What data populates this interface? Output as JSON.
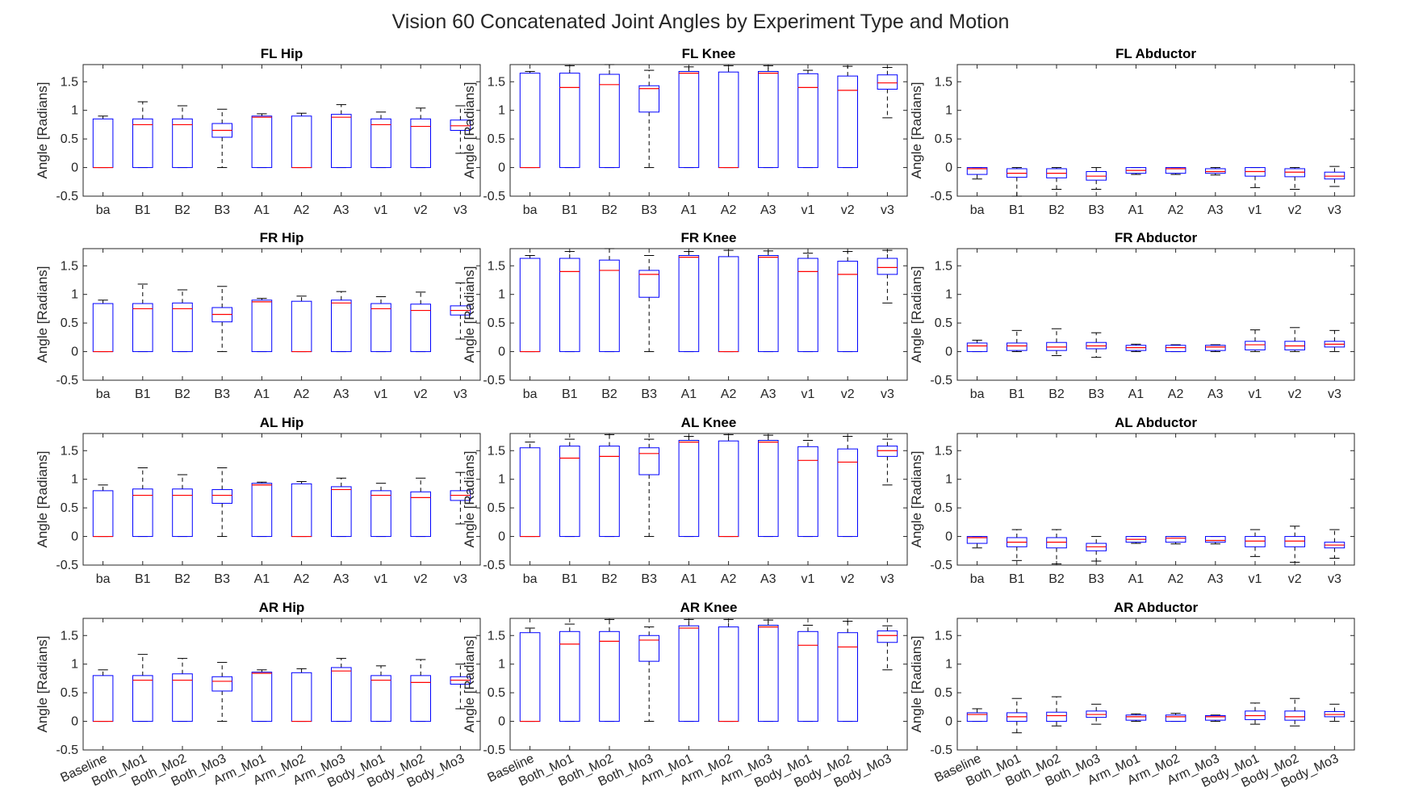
{
  "figure": {
    "title": "Vision 60 Concatenated Joint Angles by Experiment Type and Motion",
    "box_color": "#0000ff",
    "median_color": "#ff0000",
    "whisker_color": "#000000"
  },
  "chart_data": [
    {
      "type": "box",
      "title": "FL Hip",
      "ylabel": "Angle [Radians]",
      "ylim": [
        -0.5,
        1.8
      ],
      "yticks": [
        -0.5,
        0,
        0.5,
        1,
        1.5
      ],
      "categories": [
        "ba",
        "B1",
        "B2",
        "B3",
        "A1",
        "A2",
        "A3",
        "v1",
        "v2",
        "v3"
      ],
      "boxes": [
        [
          0,
          0,
          0,
          0.85,
          0.9
        ],
        [
          0,
          0,
          0.75,
          0.85,
          1.15
        ],
        [
          0,
          0,
          0.75,
          0.85,
          1.08
        ],
        [
          0,
          0.53,
          0.65,
          0.77,
          1.02
        ],
        [
          0,
          0,
          0.88,
          0.9,
          0.94
        ],
        [
          0,
          0,
          0,
          0.9,
          0.95
        ],
        [
          0,
          0,
          0.88,
          0.93,
          1.1
        ],
        [
          0,
          0,
          0.75,
          0.85,
          0.97
        ],
        [
          0,
          0,
          0.72,
          0.85,
          1.04
        ],
        [
          0.25,
          0.65,
          0.73,
          0.83,
          1.08
        ]
      ]
    },
    {
      "type": "box",
      "title": "FL Knee",
      "ylabel": "Angle [Radians]",
      "ylim": [
        -0.5,
        1.8
      ],
      "yticks": [
        -0.5,
        0,
        0.5,
        1,
        1.5
      ],
      "categories": [
        "ba",
        "B1",
        "B2",
        "B3",
        "A1",
        "A2",
        "A3",
        "v1",
        "v2",
        "v3"
      ],
      "boxes": [
        [
          0,
          0,
          0,
          1.65,
          1.68
        ],
        [
          0,
          0,
          1.4,
          1.65,
          1.78
        ],
        [
          0,
          0,
          1.45,
          1.63,
          1.8
        ],
        [
          0,
          0.97,
          1.38,
          1.43,
          1.7
        ],
        [
          0,
          0,
          1.65,
          1.68,
          1.76
        ],
        [
          0,
          0,
          0,
          1.67,
          1.78
        ],
        [
          0,
          0,
          1.65,
          1.68,
          1.78
        ],
        [
          0,
          0,
          1.4,
          1.64,
          1.7
        ],
        [
          0,
          0,
          1.35,
          1.6,
          1.77
        ],
        [
          0.87,
          1.37,
          1.48,
          1.62,
          1.75
        ]
      ]
    },
    {
      "type": "box",
      "title": "FL Abductor",
      "ylabel": "Angle [Radians]",
      "ylim": [
        -0.5,
        1.8
      ],
      "yticks": [
        -0.5,
        0,
        0.5,
        1,
        1.5
      ],
      "categories": [
        "ba",
        "B1",
        "B2",
        "B3",
        "A1",
        "A2",
        "A3",
        "v1",
        "v2",
        "v3"
      ],
      "boxes": [
        [
          -0.2,
          -0.12,
          -0.02,
          0,
          0
        ],
        [
          -0.5,
          -0.17,
          -0.1,
          -0.02,
          0
        ],
        [
          -0.38,
          -0.18,
          -0.1,
          -0.02,
          0
        ],
        [
          -0.38,
          -0.22,
          -0.15,
          -0.07,
          0
        ],
        [
          -0.12,
          -0.1,
          -0.05,
          0,
          0
        ],
        [
          -0.12,
          -0.1,
          -0.02,
          0,
          0
        ],
        [
          -0.13,
          -0.1,
          -0.07,
          -0.02,
          0
        ],
        [
          -0.35,
          -0.15,
          -0.07,
          0,
          0
        ],
        [
          -0.38,
          -0.16,
          -0.08,
          -0.02,
          0
        ],
        [
          -0.33,
          -0.2,
          -0.15,
          -0.08,
          0.02
        ]
      ]
    },
    {
      "type": "box",
      "title": "FR Hip",
      "ylabel": "Angle [Radians]",
      "ylim": [
        -0.5,
        1.8
      ],
      "yticks": [
        -0.5,
        0,
        0.5,
        1,
        1.5
      ],
      "categories": [
        "ba",
        "B1",
        "B2",
        "B3",
        "A1",
        "A2",
        "A3",
        "v1",
        "v2",
        "v3"
      ],
      "boxes": [
        [
          0,
          0,
          0,
          0.84,
          0.9
        ],
        [
          0,
          0,
          0.75,
          0.84,
          1.18
        ],
        [
          0,
          0,
          0.75,
          0.85,
          1.08
        ],
        [
          0,
          0.52,
          0.65,
          0.77,
          1.14
        ],
        [
          0,
          0,
          0.87,
          0.9,
          0.93
        ],
        [
          0,
          0,
          0,
          0.88,
          0.97
        ],
        [
          0,
          0,
          0.85,
          0.9,
          1.05
        ],
        [
          0,
          0,
          0.75,
          0.84,
          0.96
        ],
        [
          0,
          0,
          0.72,
          0.83,
          1.04
        ],
        [
          0.22,
          0.64,
          0.72,
          0.8,
          1.2
        ]
      ]
    },
    {
      "type": "box",
      "title": "FR Knee",
      "ylabel": "Angle [Radians]",
      "ylim": [
        -0.5,
        1.8
      ],
      "yticks": [
        -0.5,
        0,
        0.5,
        1,
        1.5
      ],
      "categories": [
        "ba",
        "B1",
        "B2",
        "B3",
        "A1",
        "A2",
        "A3",
        "v1",
        "v2",
        "v3"
      ],
      "boxes": [
        [
          0,
          0,
          0,
          1.63,
          1.68
        ],
        [
          0,
          0,
          1.4,
          1.63,
          1.75
        ],
        [
          0,
          0,
          1.42,
          1.6,
          1.8
        ],
        [
          0,
          0.95,
          1.35,
          1.42,
          1.68
        ],
        [
          0,
          0,
          1.65,
          1.68,
          1.75
        ],
        [
          0,
          0,
          0,
          1.66,
          1.77
        ],
        [
          0,
          0,
          1.65,
          1.68,
          1.76
        ],
        [
          0,
          0,
          1.4,
          1.63,
          1.72
        ],
        [
          0,
          0,
          1.35,
          1.58,
          1.75
        ],
        [
          0.85,
          1.35,
          1.47,
          1.63,
          1.77
        ]
      ]
    },
    {
      "type": "box",
      "title": "FR Abductor",
      "ylabel": "Angle [Radians]",
      "ylim": [
        -0.5,
        1.8
      ],
      "yticks": [
        -0.5,
        0,
        0.5,
        1,
        1.5
      ],
      "categories": [
        "ba",
        "B1",
        "B2",
        "B3",
        "A1",
        "A2",
        "A3",
        "v1",
        "v2",
        "v3"
      ],
      "boxes": [
        [
          0,
          0,
          0.1,
          0.15,
          0.2
        ],
        [
          0,
          0.02,
          0.1,
          0.15,
          0.37
        ],
        [
          -0.07,
          0.02,
          0.08,
          0.16,
          0.4
        ],
        [
          -0.1,
          0.05,
          0.1,
          0.16,
          0.33
        ],
        [
          0,
          0.02,
          0.07,
          0.11,
          0.13
        ],
        [
          0,
          0,
          0.07,
          0.11,
          0.12
        ],
        [
          0,
          0.02,
          0.08,
          0.11,
          0.12
        ],
        [
          0,
          0.03,
          0.12,
          0.18,
          0.38
        ],
        [
          0,
          0.03,
          0.1,
          0.18,
          0.42
        ],
        [
          0,
          0.08,
          0.13,
          0.18,
          0.37
        ]
      ]
    },
    {
      "type": "box",
      "title": "AL Hip",
      "ylabel": "Angle [Radians]",
      "ylim": [
        -0.5,
        1.8
      ],
      "yticks": [
        -0.5,
        0,
        0.5,
        1,
        1.5
      ],
      "categories": [
        "ba",
        "B1",
        "B2",
        "B3",
        "A1",
        "A2",
        "A3",
        "v1",
        "v2",
        "v3"
      ],
      "boxes": [
        [
          0,
          0,
          0,
          0.8,
          0.9
        ],
        [
          0,
          0,
          0.72,
          0.83,
          1.2
        ],
        [
          0,
          0,
          0.72,
          0.83,
          1.08
        ],
        [
          0,
          0.58,
          0.72,
          0.82,
          1.2
        ],
        [
          0,
          0,
          0.9,
          0.93,
          0.95
        ],
        [
          0,
          0,
          0,
          0.92,
          0.96
        ],
        [
          0,
          0,
          0.82,
          0.87,
          1.02
        ],
        [
          0,
          0,
          0.72,
          0.8,
          0.93
        ],
        [
          0,
          0,
          0.68,
          0.78,
          1.02
        ],
        [
          0.22,
          0.63,
          0.72,
          0.8,
          1.12
        ]
      ]
    },
    {
      "type": "box",
      "title": "AL Knee",
      "ylabel": "Angle [Radians]",
      "ylim": [
        -0.5,
        1.8
      ],
      "yticks": [
        -0.5,
        0,
        0.5,
        1,
        1.5
      ],
      "categories": [
        "ba",
        "B1",
        "B2",
        "B3",
        "A1",
        "A2",
        "A3",
        "v1",
        "v2",
        "v3"
      ],
      "boxes": [
        [
          0,
          0,
          0,
          1.55,
          1.65
        ],
        [
          0,
          0,
          1.37,
          1.58,
          1.7
        ],
        [
          0,
          0,
          1.4,
          1.58,
          1.78
        ],
        [
          0,
          1.08,
          1.45,
          1.55,
          1.7
        ],
        [
          0,
          0,
          1.65,
          1.68,
          1.75
        ],
        [
          0,
          0,
          0,
          1.67,
          1.78
        ],
        [
          0,
          0,
          1.65,
          1.68,
          1.77
        ],
        [
          0,
          0,
          1.33,
          1.57,
          1.68
        ],
        [
          0,
          0,
          1.3,
          1.53,
          1.75
        ],
        [
          0.9,
          1.4,
          1.5,
          1.58,
          1.7
        ]
      ]
    },
    {
      "type": "box",
      "title": "AL Abductor",
      "ylabel": "Angle [Radians]",
      "ylim": [
        -0.5,
        1.8
      ],
      "yticks": [
        -0.5,
        0,
        0.5,
        1,
        1.5
      ],
      "categories": [
        "ba",
        "B1",
        "B2",
        "B3",
        "A1",
        "A2",
        "A3",
        "v1",
        "v2",
        "v3"
      ],
      "boxes": [
        [
          -0.2,
          -0.12,
          -0.02,
          0,
          0
        ],
        [
          -0.42,
          -0.18,
          -0.1,
          -0.02,
          0.12
        ],
        [
          -0.48,
          -0.2,
          -0.1,
          -0.02,
          0.12
        ],
        [
          -0.43,
          -0.25,
          -0.18,
          -0.12,
          0
        ],
        [
          -0.12,
          -0.1,
          -0.05,
          0,
          0
        ],
        [
          -0.13,
          -0.1,
          -0.03,
          0,
          0
        ],
        [
          -0.13,
          -0.1,
          -0.07,
          0,
          0
        ],
        [
          -0.35,
          -0.18,
          -0.08,
          0,
          0.12
        ],
        [
          -0.45,
          -0.18,
          -0.08,
          0,
          0.18
        ],
        [
          -0.38,
          -0.2,
          -0.15,
          -0.1,
          0.12
        ]
      ]
    },
    {
      "type": "box",
      "title": "AR Hip",
      "ylabel": "Angle [Radians]",
      "ylim": [
        -0.5,
        1.8
      ],
      "yticks": [
        -0.5,
        0,
        0.5,
        1,
        1.5
      ],
      "categories": [
        "Baseline",
        "Both_Mo1",
        "Both_Mo2",
        "Both_Mo3",
        "Arm_Mo1",
        "Arm_Mo2",
        "Arm_Mo3",
        "Body_Mo1",
        "Body_Mo2",
        "Body_Mo3"
      ],
      "boxes": [
        [
          0,
          0,
          0,
          0.8,
          0.9
        ],
        [
          0,
          0,
          0.72,
          0.8,
          1.17
        ],
        [
          0,
          0,
          0.72,
          0.83,
          1.1
        ],
        [
          0,
          0.53,
          0.7,
          0.78,
          1.03
        ],
        [
          0,
          0,
          0.84,
          0.86,
          0.9
        ],
        [
          0,
          0,
          0,
          0.85,
          0.92
        ],
        [
          0,
          0,
          0.88,
          0.94,
          1.1
        ],
        [
          0,
          0,
          0.72,
          0.8,
          0.97
        ],
        [
          0,
          0,
          0.68,
          0.8,
          1.08
        ],
        [
          0.22,
          0.65,
          0.72,
          0.78,
          1
        ]
      ]
    },
    {
      "type": "box",
      "title": "AR Knee",
      "ylabel": "Angle [Radians]",
      "ylim": [
        -0.5,
        1.8
      ],
      "yticks": [
        -0.5,
        0,
        0.5,
        1,
        1.5
      ],
      "categories": [
        "Baseline",
        "Both_Mo1",
        "Both_Mo2",
        "Both_Mo3",
        "Arm_Mo1",
        "Arm_Mo2",
        "Arm_Mo3",
        "Body_Mo1",
        "Body_Mo2",
        "Body_Mo3"
      ],
      "boxes": [
        [
          0,
          0,
          0,
          1.55,
          1.63
        ],
        [
          0,
          0,
          1.35,
          1.57,
          1.7
        ],
        [
          0,
          0,
          1.4,
          1.57,
          1.78
        ],
        [
          0,
          1.05,
          1.42,
          1.5,
          1.65
        ],
        [
          0,
          0,
          1.63,
          1.67,
          1.78
        ],
        [
          0,
          0,
          0,
          1.65,
          1.78
        ],
        [
          0,
          0,
          1.65,
          1.68,
          1.77
        ],
        [
          0,
          0,
          1.33,
          1.57,
          1.68
        ],
        [
          0,
          0,
          1.3,
          1.55,
          1.75
        ],
        [
          0.9,
          1.38,
          1.5,
          1.58,
          1.67
        ]
      ]
    },
    {
      "type": "box",
      "title": "AR Abductor",
      "ylabel": "Angle [Radians]",
      "ylim": [
        -0.5,
        1.8
      ],
      "yticks": [
        -0.5,
        0,
        0.5,
        1,
        1.5
      ],
      "categories": [
        "Baseline",
        "Both_Mo1",
        "Both_Mo2",
        "Both_Mo3",
        "Arm_Mo1",
        "Arm_Mo2",
        "Arm_Mo3",
        "Body_Mo1",
        "Body_Mo2",
        "Body_Mo3"
      ],
      "boxes": [
        [
          0,
          0,
          0.12,
          0.15,
          0.22
        ],
        [
          -0.2,
          0,
          0.08,
          0.15,
          0.4
        ],
        [
          -0.08,
          0,
          0.1,
          0.16,
          0.43
        ],
        [
          -0.05,
          0.07,
          0.12,
          0.18,
          0.3
        ],
        [
          0,
          0.02,
          0.08,
          0.11,
          0.13
        ],
        [
          0,
          0,
          0.08,
          0.11,
          0.14
        ],
        [
          0,
          0.02,
          0.08,
          0.1,
          0.11
        ],
        [
          -0.05,
          0.03,
          0.1,
          0.18,
          0.32
        ],
        [
          -0.08,
          0.02,
          0.08,
          0.18,
          0.4
        ],
        [
          0,
          0.08,
          0.12,
          0.17,
          0.3
        ]
      ]
    }
  ]
}
